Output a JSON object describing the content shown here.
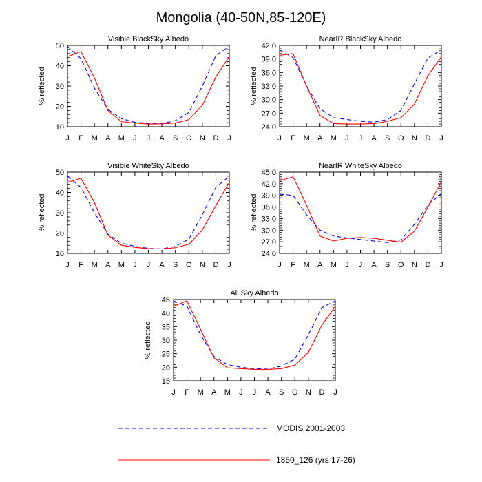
{
  "title": "Mongolia (40-50N,85-120E)",
  "legend": {
    "placement": "bottom-center",
    "entries": [
      {
        "name": "MODIS 2001-2003",
        "color": "#0000ff",
        "style": "dashed"
      },
      {
        "name": "1850_126 (yrs 17-26)",
        "color": "#ff0000",
        "style": "solid"
      }
    ]
  },
  "chart_data": [
    {
      "type": "line",
      "title": "Visible BlackSky Albedo",
      "ylabel": "% reflected",
      "xlabel": "",
      "categories": [
        "J",
        "F",
        "M",
        "A",
        "M",
        "J",
        "J",
        "A",
        "S",
        "O",
        "N",
        "D",
        "J"
      ],
      "ylim": [
        10,
        50
      ],
      "yticks": [
        10,
        20,
        30,
        40,
        50
      ],
      "ytick_labels": [
        "10",
        "20",
        "30",
        "40",
        "50"
      ],
      "grid": false,
      "series": [
        {
          "name": "MODIS 2001-2003",
          "color": "#0000ff",
          "dash": true,
          "values": [
            49.5,
            43.5,
            29,
            18.5,
            14,
            12.2,
            11.6,
            11.5,
            13,
            17,
            30,
            45,
            49.5
          ]
        },
        {
          "name": "1850_126 (yrs 17-26)",
          "color": "#ff0000",
          "dash": false,
          "values": [
            44.5,
            47,
            34,
            18,
            12.5,
            11.8,
            11.3,
            11.4,
            11.8,
            13.5,
            20.5,
            34.5,
            44.5
          ]
        }
      ]
    },
    {
      "type": "line",
      "title": "NearIR BlackSky Albedo",
      "ylabel": "% reflected",
      "xlabel": "",
      "categories": [
        "J",
        "F",
        "M",
        "A",
        "M",
        "J",
        "J",
        "A",
        "S",
        "O",
        "N",
        "D",
        "J"
      ],
      "ylim": [
        24,
        42
      ],
      "yticks": [
        24,
        27,
        30,
        33,
        36,
        39,
        42
      ],
      "ytick_labels": [
        "24.0",
        "27.0",
        "30.0",
        "33.0",
        "36.0",
        "39.0",
        "42.0"
      ],
      "grid": false,
      "series": [
        {
          "name": "MODIS 2001-2003",
          "color": "#0000ff",
          "dash": true,
          "values": [
            41,
            39.3,
            33,
            28,
            26,
            25.6,
            25.2,
            25,
            25.6,
            27.6,
            33.5,
            39.2,
            41
          ]
        },
        {
          "name": "1850_126 (yrs 17-26)",
          "color": "#ff0000",
          "dash": false,
          "values": [
            39.8,
            40.2,
            33,
            26.5,
            24.7,
            24.6,
            24.6,
            24.7,
            25.2,
            26,
            29,
            35.3,
            39.5
          ]
        }
      ]
    },
    {
      "type": "line",
      "title": "Visible WhiteSky Albedo",
      "ylabel": "% reflected",
      "xlabel": "",
      "categories": [
        "J",
        "F",
        "M",
        "A",
        "M",
        "J",
        "J",
        "A",
        "S",
        "O",
        "N",
        "D",
        "J"
      ],
      "ylim": [
        10,
        50
      ],
      "yticks": [
        10,
        20,
        30,
        40,
        50
      ],
      "ytick_labels": [
        "10",
        "20",
        "30",
        "40",
        "50"
      ],
      "grid": false,
      "series": [
        {
          "name": "MODIS 2001-2003",
          "color": "#0000ff",
          "dash": true,
          "values": [
            48,
            42.5,
            30,
            19.5,
            15,
            13.5,
            12.5,
            12.2,
            13.5,
            17,
            29,
            42.5,
            48
          ]
        },
        {
          "name": "1850_126 (yrs 17-26)",
          "color": "#ff0000",
          "dash": false,
          "values": [
            45,
            47,
            35,
            19,
            14,
            13,
            12.3,
            12.2,
            12.8,
            14.5,
            21.5,
            33.5,
            45
          ]
        }
      ]
    },
    {
      "type": "line",
      "title": "NearIR WhiteSky Albedo",
      "ylabel": "% reflected",
      "xlabel": "",
      "categories": [
        "J",
        "F",
        "M",
        "A",
        "M",
        "J",
        "J",
        "A",
        "S",
        "O",
        "N",
        "D",
        "J"
      ],
      "ylim": [
        24,
        45
      ],
      "yticks": [
        24,
        27,
        30,
        33,
        36,
        39,
        42,
        45
      ],
      "ytick_labels": [
        "24.0",
        "27.0",
        "30.0",
        "33.0",
        "36.0",
        "39.0",
        "42.0",
        "45.0"
      ],
      "grid": false,
      "series": [
        {
          "name": "MODIS 2001-2003",
          "color": "#0000ff",
          "dash": true,
          "values": [
            39.3,
            39,
            34,
            30,
            28.5,
            28,
            27.6,
            27.2,
            26.8,
            27.5,
            31.5,
            36.5,
            39.5
          ]
        },
        {
          "name": "1850_126 (yrs 17-26)",
          "color": "#ff0000",
          "dash": false,
          "values": [
            42.8,
            43.8,
            36.5,
            28.5,
            27.2,
            27.9,
            28.1,
            27.9,
            27.4,
            26.9,
            29.7,
            36,
            42.5
          ]
        }
      ]
    },
    {
      "type": "line",
      "title": "All Sky Albedo",
      "ylabel": "% reflected",
      "xlabel": "",
      "categories": [
        "J",
        "F",
        "M",
        "A",
        "M",
        "J",
        "J",
        "A",
        "S",
        "O",
        "N",
        "D",
        "J"
      ],
      "ylim": [
        15,
        45
      ],
      "yticks": [
        15,
        20,
        25,
        30,
        35,
        40,
        45
      ],
      "ytick_labels": [
        "15",
        "20",
        "25",
        "30",
        "35",
        "40",
        "45"
      ],
      "grid": false,
      "series": [
        {
          "name": "MODIS 2001-2003",
          "color": "#0000ff",
          "dash": true,
          "values": [
            44.5,
            42.5,
            32,
            24,
            21,
            20,
            19.5,
            19.3,
            20.5,
            23,
            32,
            42,
            44.5
          ]
        },
        {
          "name": "1850_126 (yrs 17-26)",
          "color": "#ff0000",
          "dash": false,
          "values": [
            42.5,
            44.5,
            34,
            23.5,
            19.8,
            19.5,
            19.2,
            19.2,
            19.5,
            20.8,
            25.5,
            35.5,
            42.5
          ]
        }
      ]
    }
  ]
}
